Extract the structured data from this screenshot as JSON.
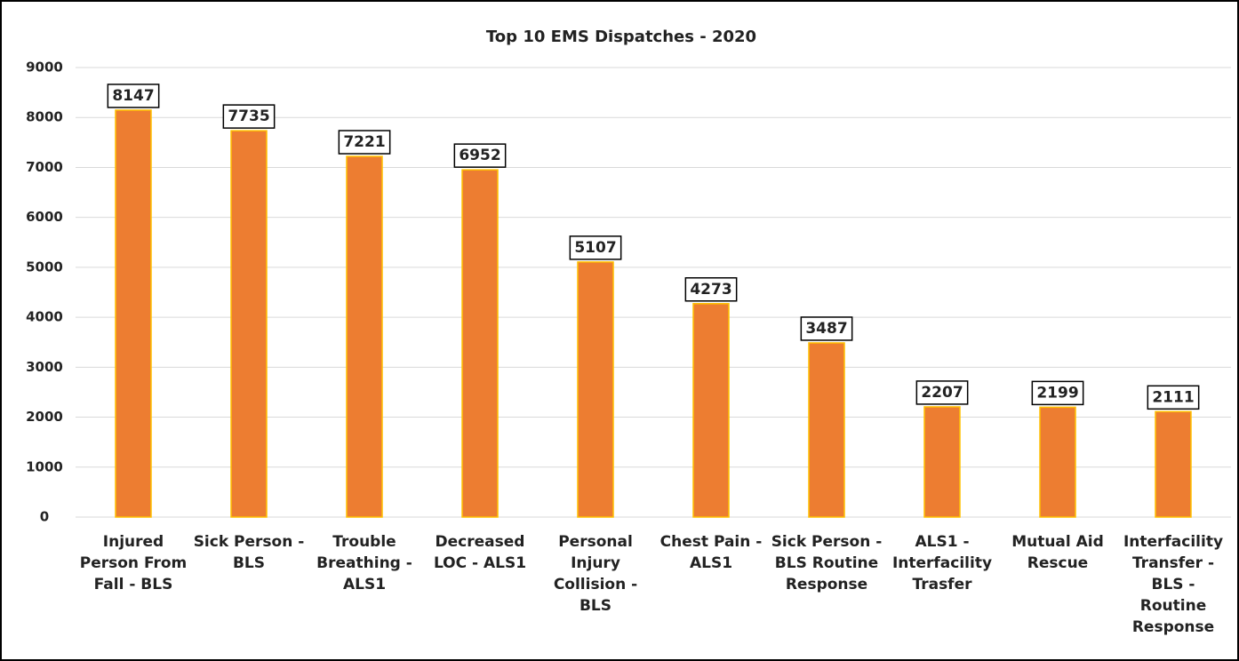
{
  "chart_data": {
    "type": "bar",
    "title": "Top 10 EMS Dispatches - 2020",
    "categories": [
      "Injured Person From Fall - BLS",
      "Sick Person - BLS",
      "Trouble Breathing - ALS1",
      "Decreased LOC - ALS1",
      "Personal Injury Collision - BLS",
      "Chest Pain - ALS1",
      "Sick Person - BLS Routine Response",
      "ALS1 - Interfacility Trasfer",
      "Mutual Aid Rescue",
      "Interfacility Transfer - BLS - Routine Response"
    ],
    "values": [
      8147,
      7735,
      7221,
      6952,
      5107,
      4273,
      3487,
      2207,
      2199,
      2111
    ],
    "color": "#ED7D31",
    "edge_color": "#FFC000",
    "ylim": [
      0,
      9000
    ],
    "yticks": [
      0,
      1000,
      2000,
      3000,
      4000,
      5000,
      6000,
      7000,
      8000,
      9000
    ],
    "grid": true
  }
}
